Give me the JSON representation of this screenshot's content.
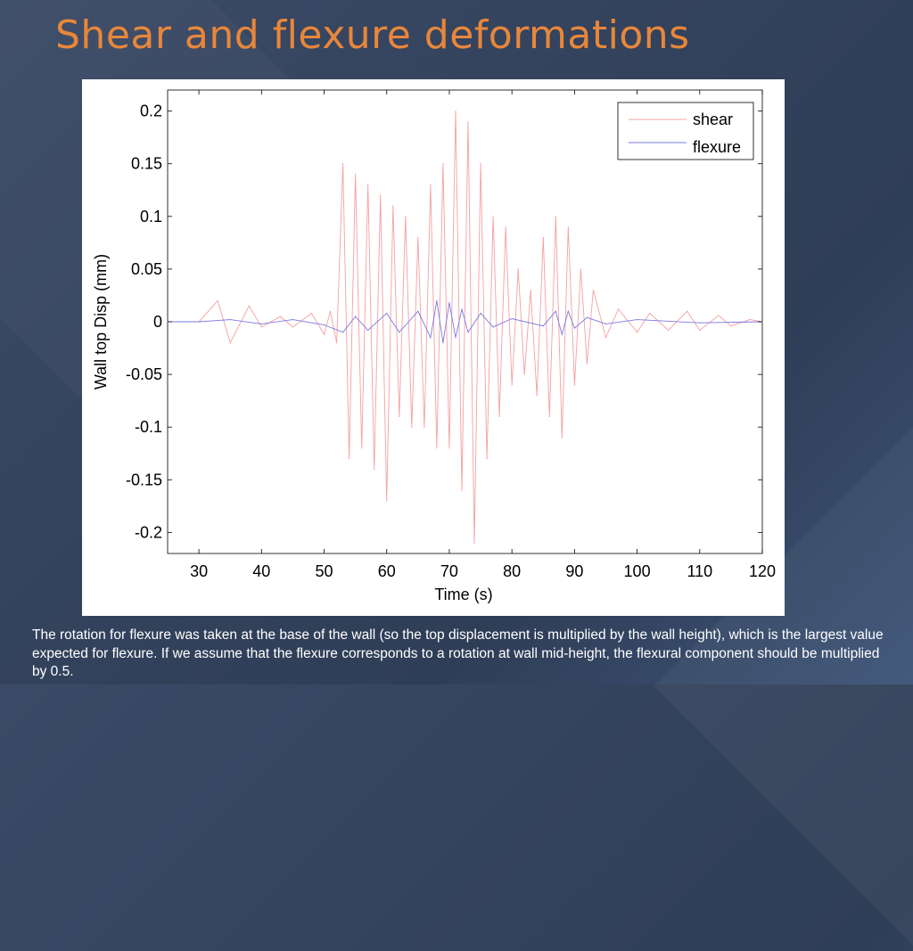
{
  "slide": {
    "title": "Shear and flexure deformations",
    "caption": "The rotation for flexure was taken at the base of the wall (so the top displacement is multiplied by the wall height), which is the  largest value expected for flexure. If we assume that the flexure  corresponds to a rotation at wall mid-height, the flexural component should be multiplied by 0.5."
  },
  "chart_data": {
    "type": "line",
    "title": "",
    "xlabel": "Time (s)",
    "ylabel": "Wall top Disp (mm)",
    "xlim": [
      25,
      120
    ],
    "ylim": [
      -0.22,
      0.22
    ],
    "xticks": [
      30,
      40,
      50,
      60,
      70,
      80,
      90,
      100,
      110,
      120
    ],
    "xtick_labels": [
      "30",
      "40",
      "50",
      "60",
      "70",
      "80",
      "90",
      "100",
      "110",
      "120"
    ],
    "yticks": [
      0.2,
      0.15,
      0.1,
      0.05,
      0,
      -0.05,
      -0.1,
      -0.15,
      -0.2
    ],
    "ytick_labels": [
      "0.2",
      "0.15",
      "0.1",
      "0.05",
      "0",
      "-0.05",
      "-0.1",
      "-0.15",
      "-0.2"
    ],
    "grid": false,
    "legend": "top-right",
    "series": [
      {
        "name": "shear",
        "color": "#f4a0a0",
        "x": [
          25,
          30,
          33,
          35,
          38,
          40,
          43,
          45,
          48,
          50,
          51,
          52,
          53,
          54,
          55,
          56,
          57,
          58,
          59,
          60,
          61,
          62,
          63,
          64,
          65,
          66,
          67,
          68,
          69,
          70,
          71,
          72,
          73,
          74,
          75,
          76,
          77,
          78,
          79,
          80,
          81,
          82,
          83,
          84,
          85,
          86,
          87,
          88,
          89,
          90,
          91,
          92,
          93,
          95,
          97,
          100,
          102,
          105,
          108,
          110,
          113,
          115,
          118,
          120
        ],
        "y": [
          0,
          0,
          0.02,
          -0.02,
          0.015,
          -0.005,
          0.005,
          -0.005,
          0.008,
          -0.012,
          0.01,
          -0.02,
          0.15,
          -0.13,
          0.14,
          -0.12,
          0.13,
          -0.14,
          0.12,
          -0.17,
          0.11,
          -0.09,
          0.1,
          -0.1,
          0.08,
          -0.1,
          0.13,
          -0.12,
          0.15,
          -0.12,
          0.2,
          -0.16,
          0.19,
          -0.21,
          0.15,
          -0.13,
          0.1,
          -0.09,
          0.09,
          -0.06,
          0.05,
          -0.05,
          0.03,
          -0.07,
          0.08,
          -0.09,
          0.1,
          -0.11,
          0.09,
          -0.06,
          0.05,
          -0.04,
          0.03,
          -0.015,
          0.012,
          -0.01,
          0.008,
          -0.008,
          0.01,
          -0.008,
          0.006,
          -0.004,
          0.002,
          0
        ]
      },
      {
        "name": "flexure",
        "color": "#7a7ae0",
        "x": [
          25,
          30,
          35,
          40,
          45,
          50,
          53,
          55,
          57,
          60,
          62,
          65,
          67,
          68,
          69,
          70,
          71,
          72,
          73,
          75,
          77,
          80,
          85,
          87,
          88,
          89,
          90,
          92,
          95,
          100,
          110,
          120
        ],
        "y": [
          0,
          0,
          0.002,
          -0.002,
          0.002,
          -0.003,
          -0.01,
          0.005,
          -0.008,
          0.008,
          -0.01,
          0.01,
          -0.015,
          0.02,
          -0.02,
          0.018,
          -0.015,
          0.012,
          -0.01,
          0.008,
          -0.005,
          0.003,
          -0.004,
          0.01,
          -0.012,
          0.01,
          -0.006,
          0.004,
          -0.002,
          0.002,
          -0.001,
          0
        ]
      }
    ]
  }
}
